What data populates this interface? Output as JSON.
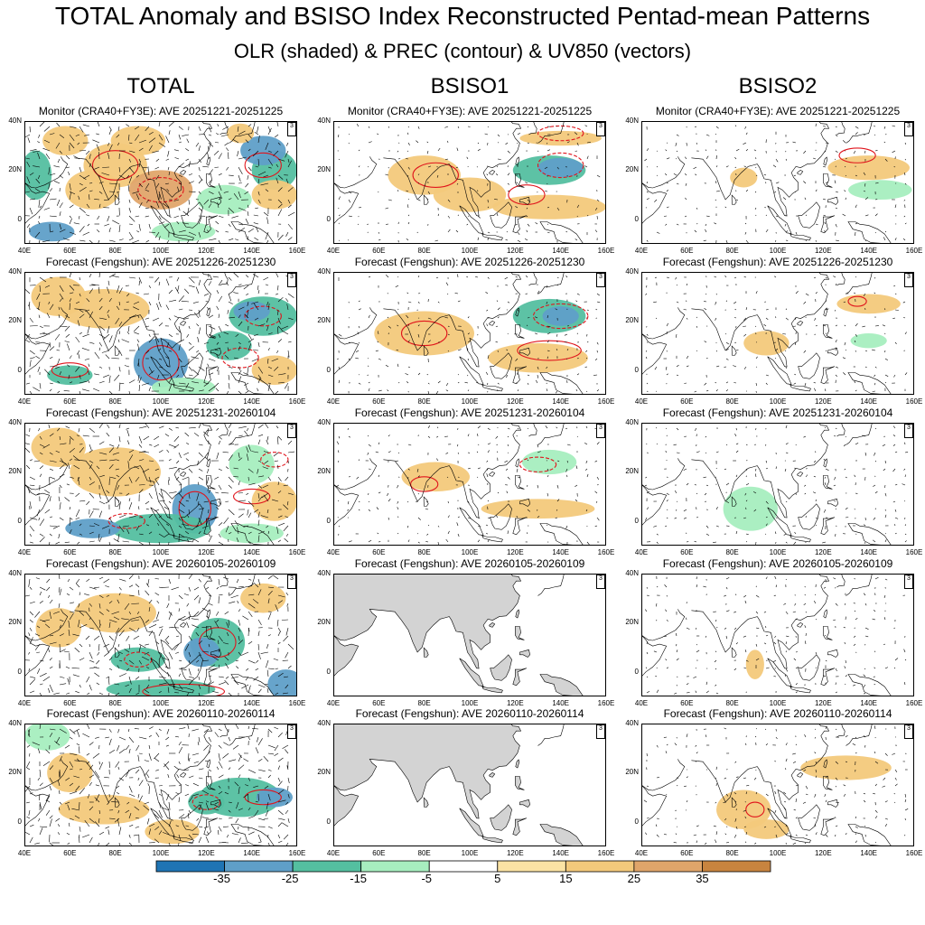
{
  "title": "TOTAL Anomaly and BSISO Index Reconstructed Pentad-mean Patterns",
  "subtitle": "OLR (shaded) & PREC (contour) & UV850 (vectors)",
  "columns": [
    "TOTAL",
    "BSISO1",
    "BSISO2"
  ],
  "row_labels": [
    "Monitor (CRA40+FY3E): AVE 20251221-20251225",
    "Forecast (Fengshun): AVE 20251226-20251230",
    "Forecast (Fengshun): AVE 20251231-20260104",
    "Forecast (Fengshun): AVE 20260105-20260109",
    "Forecast (Fengshun): AVE 20260110-20260114"
  ],
  "x_ticks": [
    "40E",
    "60E",
    "80E",
    "100E",
    "120E",
    "140E",
    "160E"
  ],
  "y_ticks": [
    "40N",
    "20N",
    "0"
  ],
  "vector_ref": "3",
  "chart_data": {
    "type": "heatmap",
    "variable": "OLR anomaly (shaded), PREC (contour), UV850 (vectors)",
    "lon_range": [
      40,
      160
    ],
    "lat_range": [
      -10,
      40
    ],
    "colorbar": {
      "levels": [
        -35,
        -25,
        -15,
        -5,
        5,
        15,
        25,
        35
      ],
      "labels": [
        "-35",
        "-25",
        "-15",
        "-5",
        "5",
        "15",
        "25",
        "35"
      ],
      "colors": [
        "#1f74b4",
        "#5f9fc8",
        "#54bfa0",
        "#a7eebf",
        "#ffffff",
        "#fbe3a4",
        "#f3c97b",
        "#e0a56a",
        "#c8843f"
      ]
    },
    "panels": [
      {
        "row": 0,
        "col": "TOTAL",
        "period": "20251221-20251225",
        "source": "CRA40+FY3E"
      },
      {
        "row": 0,
        "col": "BSISO1",
        "period": "20251221-20251225",
        "source": "CRA40+FY3E"
      },
      {
        "row": 0,
        "col": "BSISO2",
        "period": "20251221-20251225",
        "source": "CRA40+FY3E"
      },
      {
        "row": 1,
        "col": "TOTAL",
        "period": "20251226-20251230",
        "source": "Fengshun"
      },
      {
        "row": 1,
        "col": "BSISO1",
        "period": "20251226-20251230",
        "source": "Fengshun"
      },
      {
        "row": 1,
        "col": "BSISO2",
        "period": "20251226-20251230",
        "source": "Fengshun"
      },
      {
        "row": 2,
        "col": "TOTAL",
        "period": "20251231-20260104",
        "source": "Fengshun"
      },
      {
        "row": 2,
        "col": "BSISO1",
        "period": "20251231-20260104",
        "source": "Fengshun"
      },
      {
        "row": 2,
        "col": "BSISO2",
        "period": "20251231-20260104",
        "source": "Fengshun"
      },
      {
        "row": 3,
        "col": "TOTAL",
        "period": "20260105-20260109",
        "source": "Fengshun"
      },
      {
        "row": 3,
        "col": "BSISO1",
        "period": "20260105-20260109",
        "source": "Fengshun",
        "state": "missing (grey land only)"
      },
      {
        "row": 3,
        "col": "BSISO2",
        "period": "20260105-20260109",
        "source": "Fengshun"
      },
      {
        "row": 4,
        "col": "TOTAL",
        "period": "20260110-20260114",
        "source": "Fengshun"
      },
      {
        "row": 4,
        "col": "BSISO1",
        "period": "20260110-20260114",
        "source": "Fengshun",
        "state": "missing (grey land only)"
      },
      {
        "row": 4,
        "col": "BSISO2",
        "period": "20260110-20260114",
        "source": "Fengshun"
      }
    ]
  }
}
